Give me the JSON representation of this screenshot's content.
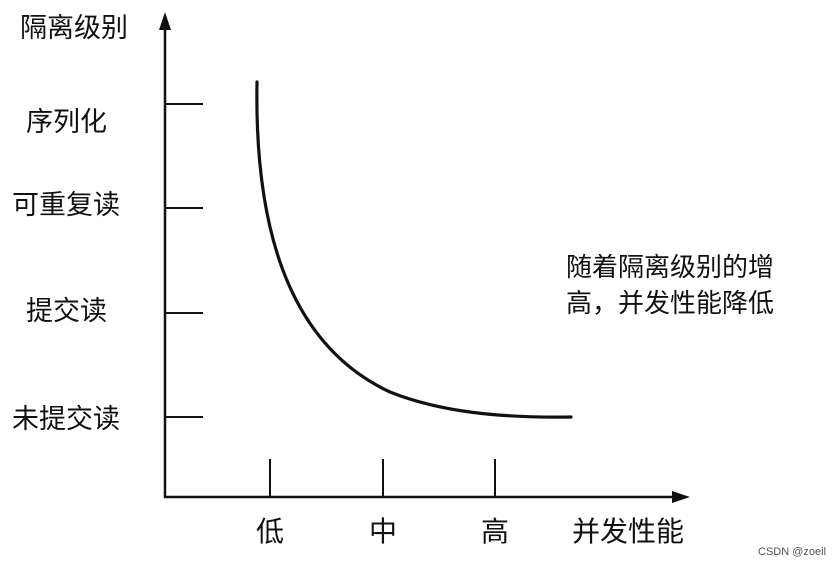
{
  "diagram": {
    "y_axis_title": "隔离级别",
    "x_axis_title": "并发性能",
    "y_levels": [
      "序列化",
      "可重复读",
      "提交读",
      "未提交读"
    ],
    "x_levels": [
      "低",
      "中",
      "高"
    ],
    "annotation_lines": [
      "随着隔离级别的增",
      "高，并发性能降低"
    ],
    "watermark": "CSDN @zoeil",
    "colors": {
      "ink": "#111111",
      "background": "#ffffff"
    }
  }
}
